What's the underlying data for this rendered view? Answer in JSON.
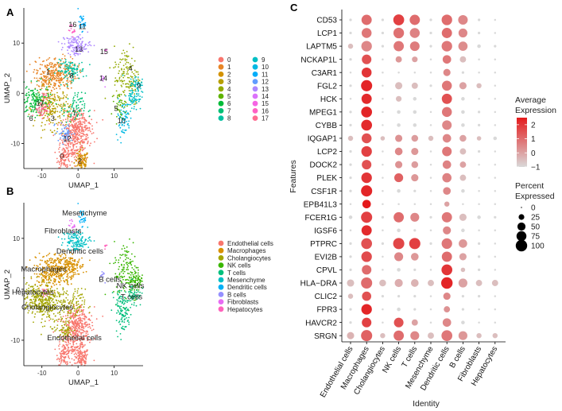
{
  "panels": {
    "a": "A",
    "b": "B",
    "c": "C"
  },
  "colors": {
    "clusters": [
      "#F8766D",
      "#E88526",
      "#D39200",
      "#B79F00",
      "#93AA00",
      "#5EB300",
      "#00BA38",
      "#00BF74",
      "#00C19F",
      "#00BFC4",
      "#00B9E3",
      "#00ADFA",
      "#619CFF",
      "#AE87FF",
      "#DB72FB",
      "#F564E3",
      "#FF61C3",
      "#FF6C91"
    ],
    "celltypes": [
      "#F8766D",
      "#D89000",
      "#A3A500",
      "#39B600",
      "#00BF7D",
      "#00BFC4",
      "#00B0F6",
      "#9590FF",
      "#E76BF3",
      "#FF62BC"
    ],
    "dot_low": "#D9D9D9",
    "dot_high": "#E41A1C"
  },
  "chart_data": [
    {
      "type": "scatter",
      "panel": "A",
      "xlabel": "UMAP_1",
      "ylabel": "UMAP_2",
      "xticks": [
        "-10",
        "0",
        "10"
      ],
      "yticks": [
        "10",
        "0",
        "-10"
      ],
      "xlim": [
        -15,
        18
      ],
      "ylim": [
        -15,
        17
      ],
      "legend": {
        "placement": "right",
        "entries": [
          "0",
          "1",
          "2",
          "3",
          "4",
          "5",
          "6",
          "7",
          "8",
          "9",
          "10",
          "11",
          "12",
          "13",
          "14",
          "15",
          "16",
          "17"
        ]
      },
      "cluster_labels": [
        {
          "text": "16",
          "x": -1.5,
          "y": 13.2
        },
        {
          "text": "11",
          "x": 1.2,
          "y": 12.8
        },
        {
          "text": "13",
          "x": 0.2,
          "y": 8.3
        },
        {
          "text": "15",
          "x": 7.2,
          "y": 7.8
        },
        {
          "text": "1",
          "x": -8.3,
          "y": 3.8
        },
        {
          "text": "8",
          "x": -1.8,
          "y": 3.0
        },
        {
          "text": "14",
          "x": 7.0,
          "y": 2.5
        },
        {
          "text": "4",
          "x": 14.5,
          "y": 4.5
        },
        {
          "text": "9",
          "x": 16.8,
          "y": 1.0
        },
        {
          "text": "17",
          "x": -10.5,
          "y": -2.5
        },
        {
          "text": "6",
          "x": -13.0,
          "y": -5.5
        },
        {
          "text": "3",
          "x": -7.0,
          "y": -5.5
        },
        {
          "text": "7",
          "x": -1.0,
          "y": -4.5
        },
        {
          "text": "5",
          "x": 10.5,
          "y": -3.5
        },
        {
          "text": "10",
          "x": 12.0,
          "y": -6.0
        },
        {
          "text": "12",
          "x": -3.0,
          "y": -9.5
        },
        {
          "text": "0",
          "x": -4.5,
          "y": -13.0
        },
        {
          "text": "2",
          "x": 0.5,
          "y": -14.0
        }
      ],
      "point_count": 2200
    },
    {
      "type": "scatter",
      "panel": "B",
      "xlabel": "UMAP_1",
      "ylabel": "UMAP_2",
      "xticks": [
        "-10",
        "0",
        "10"
      ],
      "yticks": [
        "10",
        "0",
        "-10"
      ],
      "xlim": [
        -15,
        18
      ],
      "ylim": [
        -15,
        17
      ],
      "legend": {
        "placement": "right",
        "entries": [
          "Endothelial cells",
          "Macrophages",
          "Cholangiocytes",
          "NK cells",
          "T cells",
          "Mesenchyme",
          "Dendritic cells",
          "B cells",
          "Fibroblasts",
          "Hepatocytes"
        ]
      },
      "cluster_labels": [
        {
          "text": "Mesenchyme",
          "x": 1.8,
          "y": 14.5
        },
        {
          "text": "Fibroblasts",
          "x": -4.2,
          "y": 11.0
        },
        {
          "text": "Dendritic cells",
          "x": 0.5,
          "y": 7.0
        },
        {
          "text": "Macrophages",
          "x": -9.5,
          "y": 3.5
        },
        {
          "text": "B cells",
          "x": 8.8,
          "y": 1.5
        },
        {
          "text": "NK cells",
          "x": 14.5,
          "y": 0.2
        },
        {
          "text": "Hepatocytes",
          "x": -12.5,
          "y": -1.0
        },
        {
          "text": "T cells",
          "x": 14.8,
          "y": -2.0
        },
        {
          "text": "Cholangiocytes",
          "x": -8.5,
          "y": -4.0
        },
        {
          "text": "Endothelial cells",
          "x": -1.0,
          "y": -10.0
        }
      ],
      "point_count": 2200
    },
    {
      "type": "dotplot",
      "panel": "C",
      "xlabel": "Identity",
      "ylabel": "Features",
      "features": [
        "CD53",
        "LCP1",
        "LAPTM5",
        "NCKAP1L",
        "C3AR1",
        "FGL2",
        "HCK",
        "MPEG1",
        "CYBB",
        "IQGAP1",
        "LCP2",
        "DOCK2",
        "PLEK",
        "CSF1R",
        "EPB41L3",
        "FCER1G",
        "IGSF6",
        "PTPRC",
        "EVI2B",
        "CPVL",
        "HLA−DRA",
        "CLIC2",
        "FPR3",
        "HAVCR2",
        "SRGN"
      ],
      "identities": [
        "Endothelial cells",
        "Macrophages",
        "Cholangiocytes",
        "NK cells",
        "T cells",
        "Mesenchyme",
        "Dendritic cells",
        "B cells",
        "Fibroblasts",
        "Hepatocytes"
      ],
      "avg_expression": [
        [
          -1,
          1.0,
          -1,
          1.8,
          1.0,
          -1,
          1.0,
          0.5,
          -1,
          -1
        ],
        [
          -1,
          0.8,
          -1,
          0.9,
          0.6,
          -1,
          1.0,
          0.5,
          -1,
          -1
        ],
        [
          -0.5,
          0.5,
          -1,
          0.8,
          0.7,
          -1,
          0.8,
          0.4,
          -1,
          -1
        ],
        [
          -1,
          1.5,
          -1,
          0.2,
          0.0,
          -1,
          0.8,
          -0.5,
          -1,
          -1
        ],
        [
          -1,
          2.0,
          -1,
          -1,
          -1,
          -1,
          0.5,
          -1,
          -1,
          -1
        ],
        [
          -1,
          2.3,
          -1,
          -0.5,
          -0.5,
          -1,
          0.8,
          0,
          -0.5,
          -1
        ],
        [
          -1,
          2.2,
          -1,
          -0.5,
          -1,
          -1,
          1.5,
          -1,
          -1,
          -1
        ],
        [
          -1,
          2.3,
          -1,
          -1,
          -1,
          -1,
          0.8,
          -1,
          -1,
          -1
        ],
        [
          -1,
          2.2,
          -1,
          -1,
          -1,
          -1,
          0.5,
          -1,
          -1,
          -1
        ],
        [
          -0.5,
          1.5,
          -0.5,
          0.3,
          0.1,
          -0.5,
          0.5,
          0,
          -0.5,
          -1
        ],
        [
          -1,
          1.8,
          -1,
          0.5,
          0.2,
          -1,
          0.8,
          -0.5,
          -1,
          -1
        ],
        [
          -1,
          1.5,
          -1,
          0.3,
          0.1,
          -1,
          0.6,
          0,
          -1,
          -1
        ],
        [
          -1,
          2.0,
          -1,
          1.2,
          0.2,
          -1,
          0.6,
          -0.5,
          -1,
          -1
        ],
        [
          -1,
          2.3,
          -1,
          -1,
          -1,
          -1,
          0.5,
          -1,
          -1,
          -1
        ],
        [
          -1,
          2.5,
          -1,
          -1,
          -1,
          -1,
          0,
          -1,
          -1,
          -1
        ],
        [
          -1,
          1.8,
          -1,
          1.0,
          0.5,
          -1,
          0.8,
          -0.5,
          -1,
          -1
        ],
        [
          -1,
          2.2,
          -1,
          -1,
          -1,
          -1,
          0.5,
          -1,
          -1,
          -1
        ],
        [
          -1,
          1.5,
          -1,
          1.7,
          1.8,
          -1,
          0.8,
          0.2,
          -1,
          -1
        ],
        [
          -1,
          1.6,
          -1,
          0.5,
          0.2,
          -1,
          1.0,
          0,
          -1,
          -1
        ],
        [
          -1,
          1.0,
          -1,
          -1,
          -1,
          -1,
          2.0,
          -0.5,
          -1,
          -1
        ],
        [
          -0.5,
          1.0,
          -0.5,
          -0.2,
          -0.3,
          -0.5,
          2.3,
          0,
          -0.5,
          -0.5
        ],
        [
          -0.5,
          1.5,
          -1,
          -1,
          -1,
          -1,
          0.5,
          -1,
          -1,
          -1
        ],
        [
          -1,
          2.3,
          -1,
          -1,
          -1,
          -1,
          0.3,
          -1,
          -1,
          -1
        ],
        [
          -1,
          1.8,
          -1,
          1.5,
          0.0,
          -1,
          0.5,
          -1,
          -1,
          -1
        ],
        [
          -0.3,
          1.2,
          -0.5,
          1.0,
          0.5,
          -0.5,
          0.8,
          0.2,
          -0.5,
          -0.5
        ]
      ],
      "pct_expressed": [
        [
          5,
          80,
          5,
          90,
          80,
          5,
          85,
          70,
          5,
          3
        ],
        [
          5,
          75,
          5,
          85,
          75,
          5,
          80,
          60,
          5,
          3
        ],
        [
          20,
          85,
          5,
          80,
          70,
          5,
          85,
          65,
          10,
          5
        ],
        [
          5,
          70,
          3,
          30,
          25,
          3,
          55,
          30,
          3,
          3
        ],
        [
          3,
          75,
          3,
          3,
          3,
          3,
          40,
          5,
          3,
          3
        ],
        [
          5,
          95,
          3,
          40,
          30,
          5,
          75,
          40,
          20,
          3
        ],
        [
          3,
          80,
          3,
          25,
          10,
          3,
          80,
          10,
          3,
          3
        ],
        [
          5,
          90,
          3,
          10,
          10,
          3,
          75,
          10,
          5,
          3
        ],
        [
          5,
          90,
          3,
          10,
          10,
          3,
          70,
          10,
          5,
          3
        ],
        [
          20,
          75,
          15,
          40,
          35,
          20,
          55,
          35,
          15,
          10
        ],
        [
          5,
          85,
          3,
          45,
          40,
          3,
          70,
          30,
          5,
          3
        ],
        [
          5,
          70,
          3,
          40,
          35,
          3,
          55,
          30,
          3,
          3
        ],
        [
          5,
          85,
          3,
          60,
          40,
          3,
          65,
          30,
          3,
          3
        ],
        [
          5,
          95,
          3,
          10,
          5,
          3,
          45,
          10,
          3,
          3
        ],
        [
          3,
          55,
          3,
          3,
          3,
          3,
          20,
          3,
          3,
          3
        ],
        [
          10,
          95,
          5,
          80,
          60,
          5,
          80,
          40,
          10,
          5
        ],
        [
          3,
          80,
          3,
          10,
          5,
          3,
          50,
          10,
          3,
          3
        ],
        [
          5,
          90,
          5,
          95,
          95,
          5,
          85,
          55,
          5,
          3
        ],
        [
          5,
          85,
          3,
          60,
          45,
          3,
          80,
          40,
          5,
          3
        ],
        [
          5,
          70,
          3,
          10,
          5,
          3,
          90,
          15,
          5,
          3
        ],
        [
          40,
          95,
          35,
          50,
          45,
          30,
          100,
          60,
          30,
          30
        ],
        [
          20,
          65,
          5,
          5,
          5,
          3,
          40,
          5,
          5,
          3
        ],
        [
          5,
          85,
          3,
          10,
          5,
          3,
          30,
          5,
          3,
          3
        ],
        [
          5,
          70,
          3,
          70,
          30,
          3,
          55,
          10,
          3,
          3
        ],
        [
          40,
          95,
          20,
          80,
          60,
          30,
          90,
          60,
          20,
          20
        ]
      ],
      "color_scale": {
        "title_line1": "Average",
        "title_line2": "Expression",
        "ticks": [
          "2",
          "1",
          "0",
          "−1"
        ],
        "range": [
          -1,
          2.5
        ]
      },
      "size_scale": {
        "title_line1": "Percent",
        "title_line2": "Expressed",
        "ticks": [
          "0",
          "25",
          "50",
          "75",
          "100"
        ]
      }
    }
  ]
}
